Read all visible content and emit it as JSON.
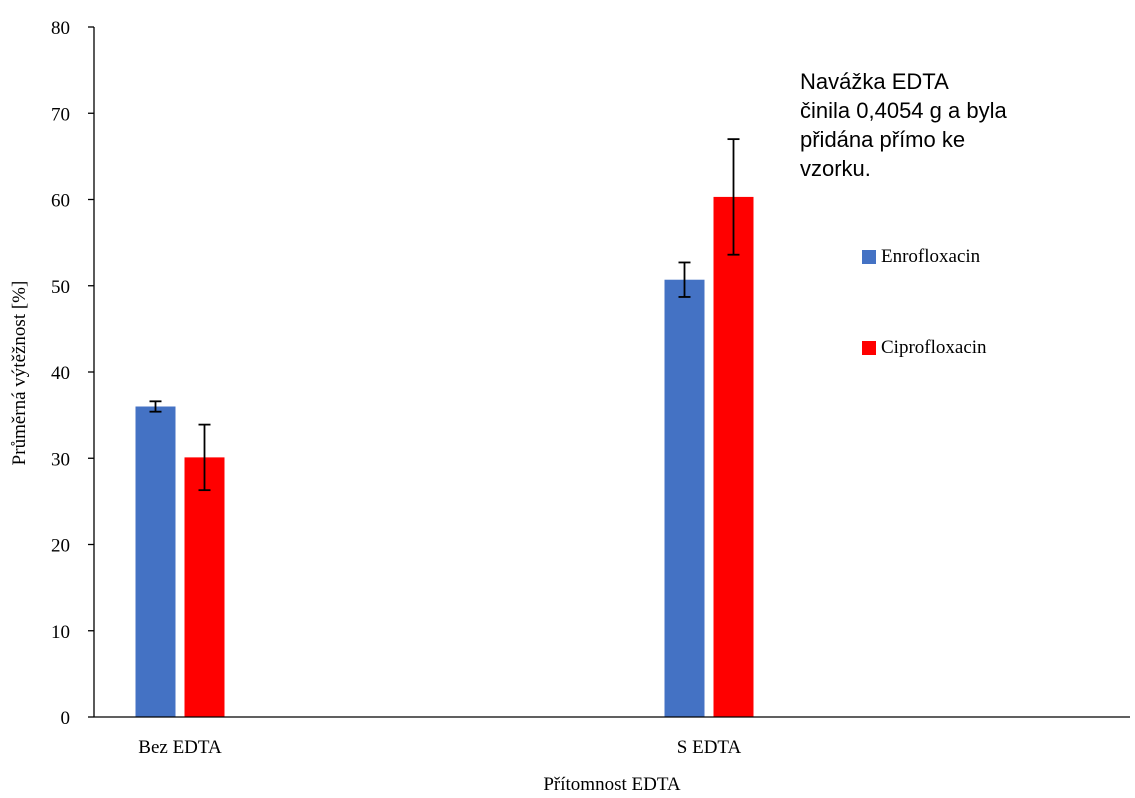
{
  "chart_data": {
    "type": "bar",
    "title": "",
    "xlabel": "Přítomnost EDTA",
    "ylabel": "Průměrná výtěžnost [%]",
    "ylim": [
      0,
      80
    ],
    "yticks": [
      0,
      10,
      20,
      30,
      40,
      50,
      60,
      70,
      80
    ],
    "grid": false,
    "categories": [
      "Bez EDTA",
      "S EDTA"
    ],
    "series": [
      {
        "name": "Enrofloxacin",
        "color": "#4472C4",
        "values": [
          36.0,
          50.7
        ],
        "errors": [
          0.6,
          2.0
        ]
      },
      {
        "name": "Ciprofloxacin",
        "color": "#FF0000",
        "values": [
          30.1,
          60.3
        ],
        "errors": [
          3.8,
          6.7
        ]
      }
    ],
    "legend_position": "right",
    "annotation": [
      "Navážka EDTA",
      "činila 0,4054 g a byla",
      "přidána přímo ke",
      "vzorku."
    ]
  }
}
